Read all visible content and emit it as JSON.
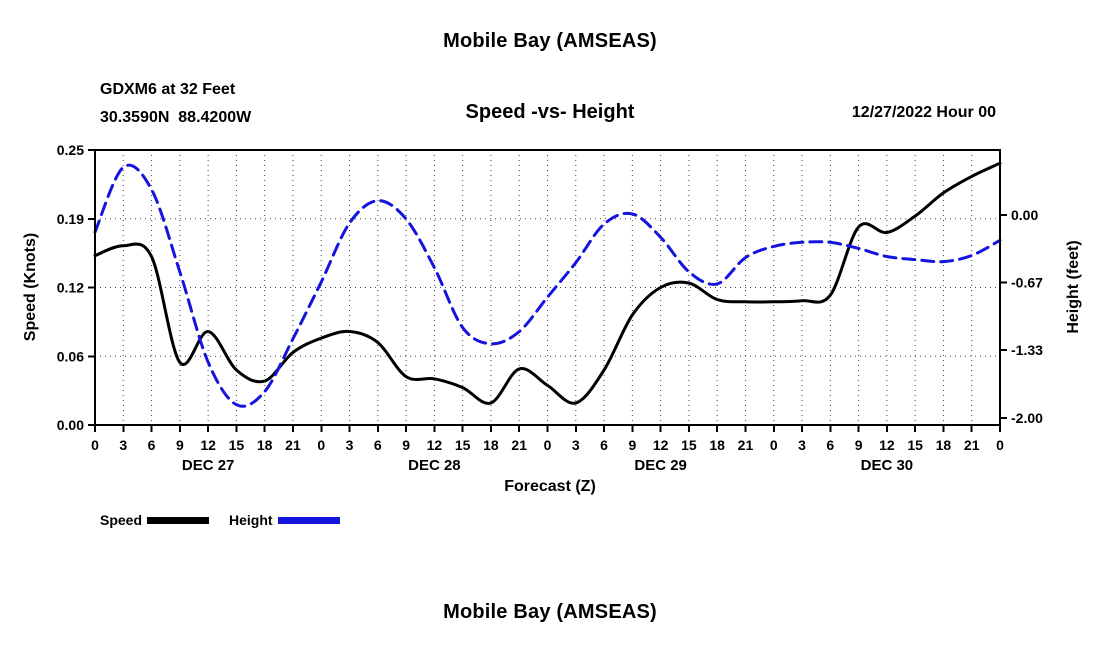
{
  "titles": {
    "top": "Mobile Bay (AMSEAS)",
    "bottom": "Mobile Bay (AMSEAS)"
  },
  "header": {
    "station": "GDXM6 at 32 Feet",
    "coordinates": "30.3590N  88.4200W",
    "subtitle": "Speed -vs- Height",
    "datetime": "12/27/2022 Hour 00"
  },
  "legend": {
    "speed_label": "Speed",
    "height_label": "Height",
    "speed_color": "#000000",
    "height_color": "#1414dd"
  },
  "chart_data": {
    "type": "line",
    "title": "Mobile Bay (AMSEAS)",
    "subtitle": "Speed -vs- Height",
    "xlabel": "Forecast (Z)",
    "ylabel_left": "Speed (Knots)",
    "ylabel_right": "Height (feet)",
    "grid": "dotted",
    "legend_position": "bottom-left",
    "x_hours": [
      0,
      3,
      6,
      9,
      12,
      15,
      18,
      21,
      24,
      27,
      30,
      33,
      36,
      39,
      42,
      45,
      48,
      51,
      54,
      57,
      60,
      63,
      66,
      69,
      72,
      75,
      78,
      81,
      84,
      87,
      90,
      93,
      96
    ],
    "x_tick_labels": [
      "0",
      "3",
      "6",
      "9",
      "12",
      "15",
      "18",
      "21",
      "0",
      "3",
      "6",
      "9",
      "12",
      "15",
      "18",
      "21",
      "0",
      "3",
      "6",
      "9",
      "12",
      "15",
      "18",
      "21",
      "0",
      "3",
      "6",
      "9",
      "12",
      "15",
      "18",
      "21",
      "0"
    ],
    "day_labels": [
      {
        "label": "DEC 27",
        "center_hour": 12
      },
      {
        "label": "DEC 28",
        "center_hour": 36
      },
      {
        "label": "DEC 29",
        "center_hour": 60
      },
      {
        "label": "DEC 30",
        "center_hour": 84
      }
    ],
    "left_axis": {
      "range": [
        0,
        0.25
      ],
      "ticks": [
        {
          "label": "0.25",
          "value": 0.25
        },
        {
          "label": "0.19",
          "value": 0.1875
        },
        {
          "label": "0.12",
          "value": 0.125
        },
        {
          "label": "0.06",
          "value": 0.0625
        },
        {
          "label": "0.00",
          "value": 0
        }
      ]
    },
    "right_axis": {
      "top_value": 0.64,
      "bottom_value": -2.07,
      "ticks": [
        {
          "label": "0.00",
          "value": 0
        },
        {
          "label": "-0.67",
          "value": -0.6667
        },
        {
          "label": "-1.33",
          "value": -1.3333
        },
        {
          "label": "-2.00",
          "value": -2
        }
      ]
    },
    "series": [
      {
        "name": "Speed",
        "axis": "left",
        "color": "#000000",
        "line": "solid",
        "width": 3,
        "values": [
          0.154,
          0.163,
          0.153,
          0.057,
          0.085,
          0.05,
          0.04,
          0.066,
          0.079,
          0.085,
          0.075,
          0.044,
          0.042,
          0.034,
          0.02,
          0.051,
          0.036,
          0.02,
          0.05,
          0.1,
          0.125,
          0.129,
          0.114,
          0.112,
          0.112,
          0.113,
          0.118,
          0.18,
          0.175,
          0.19,
          0.211,
          0.226,
          0.238
        ]
      },
      {
        "name": "Height",
        "axis": "right",
        "color": "#1414dd",
        "line": "dashed",
        "width": 3,
        "values": [
          -0.17,
          0.47,
          0.25,
          -0.56,
          -1.45,
          -1.87,
          -1.74,
          -1.22,
          -0.66,
          -0.08,
          0.14,
          -0.04,
          -0.52,
          -1.11,
          -1.27,
          -1.15,
          -0.81,
          -0.47,
          -0.09,
          0.01,
          -0.22,
          -0.56,
          -0.68,
          -0.42,
          -0.31,
          -0.27,
          -0.27,
          -0.33,
          -0.41,
          -0.44,
          -0.46,
          -0.4,
          -0.25
        ]
      }
    ]
  }
}
